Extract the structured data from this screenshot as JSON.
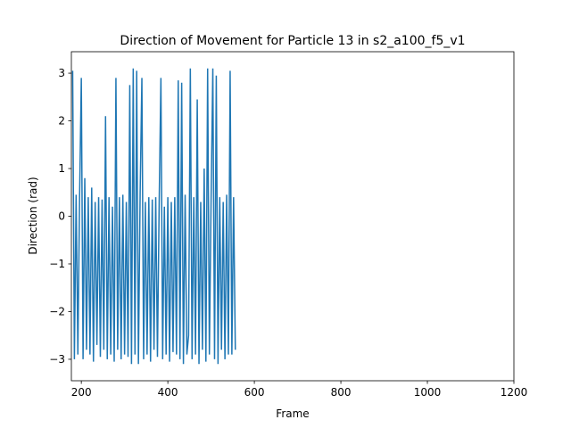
{
  "chart_data": {
    "type": "line",
    "title": "Direction of Movement for Particle 13 in s2_a100_f5_v1",
    "xlabel": "Frame",
    "ylabel": "Direction (rad)",
    "color": "#1f77b4",
    "x": [
      180,
      184,
      188,
      192,
      196,
      200,
      204,
      208,
      212,
      216,
      220,
      224,
      228,
      232,
      236,
      240,
      244,
      248,
      252,
      256,
      260,
      264,
      268,
      272,
      276,
      280,
      284,
      288,
      292,
      296,
      300,
      304,
      308,
      312,
      316,
      320,
      324,
      328,
      332,
      336,
      340,
      344,
      348,
      352,
      356,
      360,
      364,
      368,
      372,
      376,
      380,
      384,
      388,
      392,
      396,
      400,
      404,
      408,
      412,
      416,
      420,
      424,
      428,
      432,
      436,
      440,
      444,
      448,
      452,
      456,
      460,
      464,
      468,
      472,
      476,
      480,
      484,
      488,
      492,
      496,
      500,
      504,
      508,
      512,
      516,
      520,
      524,
      528,
      532,
      536,
      540,
      544,
      548,
      552,
      556
    ],
    "values": [
      3.05,
      -3.0,
      0.45,
      -2.9,
      0.4,
      2.9,
      -3.0,
      0.8,
      -2.8,
      0.4,
      -2.9,
      0.6,
      -3.05,
      0.3,
      -2.7,
      0.4,
      -2.95,
      0.35,
      -2.8,
      2.1,
      -3.0,
      0.4,
      -2.9,
      0.2,
      -3.05,
      2.9,
      -2.8,
      0.4,
      -3.0,
      0.45,
      -2.9,
      0.3,
      -2.95,
      2.75,
      -3.1,
      3.1,
      -2.9,
      3.05,
      -3.1,
      0.5,
      2.9,
      -3.0,
      0.3,
      -2.9,
      0.4,
      -3.05,
      0.35,
      -2.8,
      0.4,
      -2.95,
      0.3,
      2.9,
      -3.0,
      0.2,
      -2.9,
      0.4,
      -3.05,
      0.3,
      -2.85,
      0.4,
      -2.9,
      2.85,
      -3.0,
      2.8,
      -3.1,
      0.45,
      -2.9,
      -2.5,
      3.1,
      -3.0,
      0.4,
      -2.9,
      2.45,
      -3.1,
      0.3,
      -2.8,
      1.0,
      -3.05,
      3.1,
      -2.9,
      0.35,
      3.1,
      -3.0,
      2.95,
      -3.1,
      0.4,
      -2.8,
      0.3,
      -3.0,
      0.45,
      -2.9,
      3.05,
      -2.9,
      0.4,
      -2.8
    ],
    "xlim": [
      177,
      1200
    ],
    "ylim": [
      -3.45,
      3.45
    ],
    "xticks": [
      200,
      400,
      600,
      800,
      1000,
      1200
    ],
    "yticks": [
      {
        "value": -3,
        "label": "−3"
      },
      {
        "value": -2,
        "label": "−2"
      },
      {
        "value": -1,
        "label": "−1"
      },
      0,
      1,
      2,
      3
    ]
  }
}
